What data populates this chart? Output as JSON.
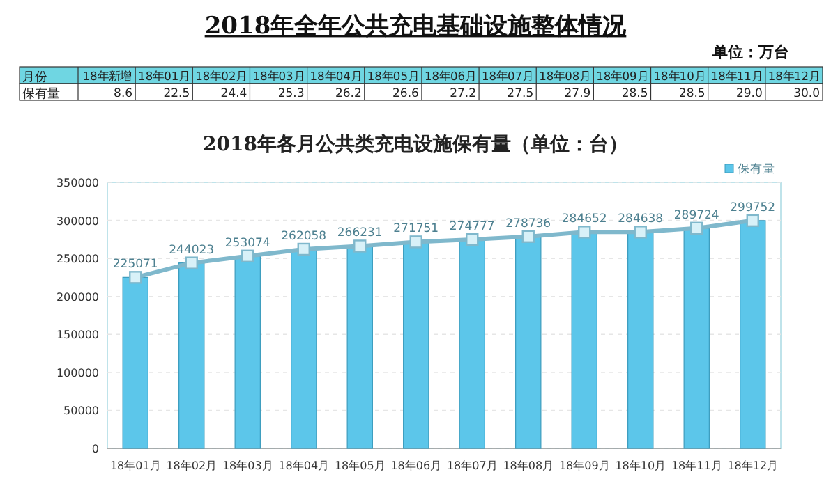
{
  "chart_data": [
    {
      "type": "heatmap",
      "title": "2018年全年公共充电基础设施整体情况",
      "subtitle": "单位：万台",
      "annotations": [
        "月份"
      ],
      "categories": [
        "18年新增",
        "18年01月",
        "18年02月",
        "18年03月",
        "18年04月",
        "18年05月",
        "18年06月",
        "18年07月",
        "18年08月",
        "18年09月",
        "18年10月",
        "18年11月",
        "18年12月"
      ],
      "y_categories": [
        "保有量"
      ],
      "cells": [
        [
          8.6,
          22.5,
          24.4,
          25.3,
          26.2,
          26.6,
          27.2,
          27.5,
          27.9,
          28.5,
          28.5,
          29.0,
          30.0
        ]
      ],
      "cell_labels": [
        [
          "8.6",
          "22.5",
          "24.4",
          "25.3",
          "26.2",
          "26.6",
          "27.2",
          "27.5",
          "27.9",
          "28.5",
          "28.5",
          "29.0",
          "30.0"
        ]
      ]
    },
    {
      "type": "bar",
      "title": "2018年各月公共类充电设施保有量（单位：台）",
      "categories": [
        "18年01月",
        "18年02月",
        "18年03月",
        "18年04月",
        "18年05月",
        "18年06月",
        "18年07月",
        "18年08月",
        "18年09月",
        "18年10月",
        "18年11月",
        "18年12月"
      ],
      "series": [
        {
          "name": "保有量",
          "color": "#5cc6ea",
          "values": [
            225071,
            244023,
            253074,
            262058,
            266231,
            271751,
            274777,
            278736,
            284652,
            284638,
            289724,
            299752
          ]
        },
        {
          "type": "line",
          "color": "#7fb8cc",
          "marker": "square",
          "values": [
            225071,
            244023,
            253074,
            262058,
            266231,
            271751,
            274777,
            278736,
            284652,
            284638,
            289724,
            299752
          ],
          "value_labels": [
            "225071",
            "244023",
            "253074",
            "262058",
            "266231",
            "271751",
            "274777",
            "278736",
            "284652",
            "284638",
            "289724",
            "299752"
          ]
        }
      ],
      "ylim": [
        0,
        350000
      ],
      "yticks": [
        0,
        50000,
        100000,
        150000,
        200000,
        250000,
        300000,
        350000
      ],
      "grid": "y",
      "legend": "top right"
    }
  ]
}
